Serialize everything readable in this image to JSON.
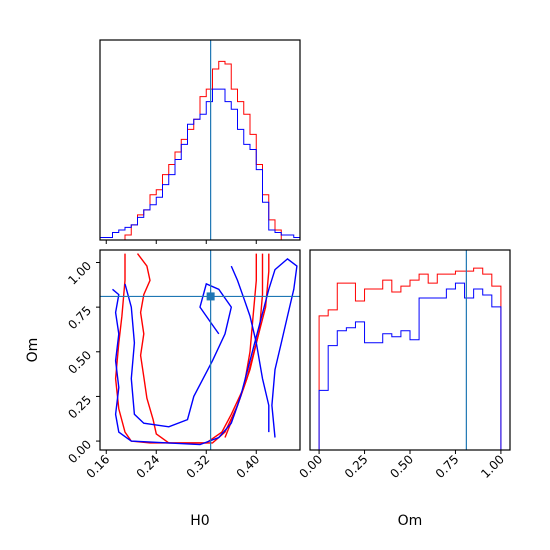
{
  "chart_data": {
    "type": "corner",
    "parameters": [
      "H0",
      "Om"
    ],
    "series": [
      {
        "color": "#ff0000"
      },
      {
        "color": "#0000ff"
      }
    ],
    "truth": {
      "H0": 0.327,
      "Om": 0.81,
      "color": "#1f77b4"
    },
    "hist_H0": {
      "xlim": [
        0.15,
        0.47
      ],
      "ticks": [
        "0.16",
        "0.24",
        "0.32",
        "0.40"
      ],
      "tick_values": [
        0.16,
        0.24,
        0.32,
        0.4
      ],
      "bin_edges": [
        0.15,
        0.16,
        0.17,
        0.18,
        0.19,
        0.2,
        0.21,
        0.22,
        0.23,
        0.24,
        0.25,
        0.26,
        0.27,
        0.28,
        0.29,
        0.3,
        0.31,
        0.32,
        0.33,
        0.34,
        0.35,
        0.36,
        0.37,
        0.38,
        0.39,
        0.4,
        0.41,
        0.42,
        0.43,
        0.44,
        0.45,
        0.46,
        0.47
      ],
      "red": [
        0,
        0,
        0,
        0,
        2,
        6,
        10,
        12,
        18,
        20,
        26,
        30,
        35,
        40,
        44,
        48,
        57,
        60,
        68,
        71,
        70,
        60,
        55,
        50,
        42,
        30,
        18,
        8,
        4,
        0,
        0,
        0
      ],
      "blue": [
        1,
        1,
        3,
        4,
        5,
        6,
        9,
        12,
        14,
        17,
        22,
        26,
        32,
        38,
        46,
        48,
        50,
        55,
        60,
        60,
        55,
        52,
        44,
        38,
        36,
        28,
        15,
        4,
        3,
        2,
        2,
        1
      ]
    },
    "hist_Om": {
      "xlim": [
        -0.05,
        1.05
      ],
      "ticks": [
        "0.00",
        "0.25",
        "0.50",
        "0.75",
        "1.00"
      ],
      "tick_values": [
        0.0,
        0.25,
        0.5,
        0.75,
        1.0
      ],
      "bin_edges": [
        -0.05,
        0.0,
        0.05,
        0.1,
        0.15,
        0.2,
        0.25,
        0.3,
        0.35,
        0.4,
        0.45,
        0.5,
        0.55,
        0.6,
        0.65,
        0.7,
        0.75,
        0.8,
        0.85,
        0.9,
        0.95,
        1.0,
        1.05
      ],
      "red": [
        0,
        45,
        47,
        56,
        56,
        50,
        54,
        54,
        57,
        53,
        55,
        57,
        59,
        56,
        59,
        59,
        60,
        60,
        61,
        59,
        55,
        0
      ],
      "blue": [
        0,
        20,
        35,
        40,
        41,
        43,
        36,
        36,
        39,
        38,
        40,
        37,
        51,
        51,
        51,
        54,
        56,
        51,
        54,
        52,
        48,
        0
      ]
    },
    "density": {
      "xlabel": "H0",
      "ylabel": "Om",
      "xlim": [
        0.15,
        0.47
      ],
      "ylim": [
        -0.05,
        1.07
      ],
      "xticks": [
        "0.16",
        "0.24",
        "0.32",
        "0.40"
      ],
      "xtick_values": [
        0.16,
        0.24,
        0.32,
        0.4
      ],
      "yticks": [
        "0.00",
        "0.25",
        "0.50",
        "0.75",
        "1.00"
      ],
      "ytick_values": [
        0.0,
        0.25,
        0.5,
        0.75,
        1.0
      ],
      "red_contours": [
        [
          [
            0.21,
            1.05
          ],
          [
            0.225,
            0.98
          ],
          [
            0.23,
            0.9
          ],
          [
            0.22,
            0.82
          ],
          [
            0.215,
            0.72
          ],
          [
            0.22,
            0.6
          ],
          [
            0.215,
            0.48
          ],
          [
            0.22,
            0.36
          ],
          [
            0.225,
            0.24
          ],
          [
            0.235,
            0.12
          ],
          [
            0.24,
            0.04
          ],
          [
            0.26,
            -0.01
          ],
          [
            0.32,
            -0.01
          ],
          [
            0.345,
            0.05
          ],
          [
            0.36,
            0.15
          ],
          [
            0.38,
            0.3
          ],
          [
            0.39,
            0.5
          ],
          [
            0.395,
            0.7
          ],
          [
            0.4,
            0.9
          ],
          [
            0.4,
            1.05
          ]
        ],
        [
          [
            0.19,
            1.05
          ],
          [
            0.19,
            0.9
          ],
          [
            0.185,
            0.7
          ],
          [
            0.18,
            0.55
          ],
          [
            0.175,
            0.35
          ],
          [
            0.18,
            0.18
          ],
          [
            0.19,
            0.05
          ],
          [
            0.2,
            0.0
          ],
          [
            0.23,
            -0.01
          ],
          [
            0.33,
            -0.01
          ],
          [
            0.35,
            0.05
          ],
          [
            0.37,
            0.2
          ],
          [
            0.39,
            0.4
          ],
          [
            0.405,
            0.62
          ],
          [
            0.41,
            0.82
          ],
          [
            0.41,
            1.05
          ]
        ],
        [
          [
            0.35,
            0.02
          ],
          [
            0.365,
            0.15
          ],
          [
            0.385,
            0.35
          ],
          [
            0.4,
            0.55
          ],
          [
            0.415,
            0.75
          ],
          [
            0.42,
            0.95
          ],
          [
            0.42,
            1.05
          ]
        ]
      ],
      "blue_contours": [
        [
          [
            0.17,
            0.85
          ],
          [
            0.18,
            0.82
          ],
          [
            0.175,
            0.72
          ],
          [
            0.18,
            0.6
          ],
          [
            0.175,
            0.45
          ],
          [
            0.18,
            0.3
          ],
          [
            0.175,
            0.15
          ],
          [
            0.18,
            0.05
          ],
          [
            0.2,
            0.0
          ],
          [
            0.31,
            -0.02
          ],
          [
            0.34,
            0.02
          ],
          [
            0.36,
            0.1
          ],
          [
            0.375,
            0.25
          ],
          [
            0.39,
            0.45
          ],
          [
            0.405,
            0.65
          ],
          [
            0.42,
            0.85
          ],
          [
            0.43,
            0.96
          ],
          [
            0.45,
            1.02
          ],
          [
            0.465,
            0.98
          ],
          [
            0.46,
            0.85
          ],
          [
            0.45,
            0.7
          ],
          [
            0.44,
            0.55
          ],
          [
            0.43,
            0.4
          ],
          [
            0.425,
            0.2
          ],
          [
            0.43,
            0.02
          ]
        ],
        [
          [
            0.19,
            0.88
          ],
          [
            0.2,
            0.75
          ],
          [
            0.205,
            0.55
          ],
          [
            0.2,
            0.35
          ],
          [
            0.205,
            0.15
          ],
          [
            0.22,
            0.1
          ],
          [
            0.26,
            0.08
          ],
          [
            0.29,
            0.12
          ],
          [
            0.3,
            0.25
          ],
          [
            0.33,
            0.45
          ],
          [
            0.35,
            0.6
          ],
          [
            0.36,
            0.75
          ],
          [
            0.34,
            0.85
          ],
          [
            0.32,
            0.88
          ],
          [
            0.31,
            0.75
          ],
          [
            0.33,
            0.65
          ],
          [
            0.34,
            0.6
          ]
        ],
        [
          [
            0.36,
            0.98
          ],
          [
            0.37,
            0.9
          ],
          [
            0.38,
            0.8
          ],
          [
            0.39,
            0.7
          ],
          [
            0.4,
            0.55
          ],
          [
            0.41,
            0.35
          ],
          [
            0.42,
            0.2
          ],
          [
            0.42,
            0.05
          ]
        ]
      ]
    }
  }
}
